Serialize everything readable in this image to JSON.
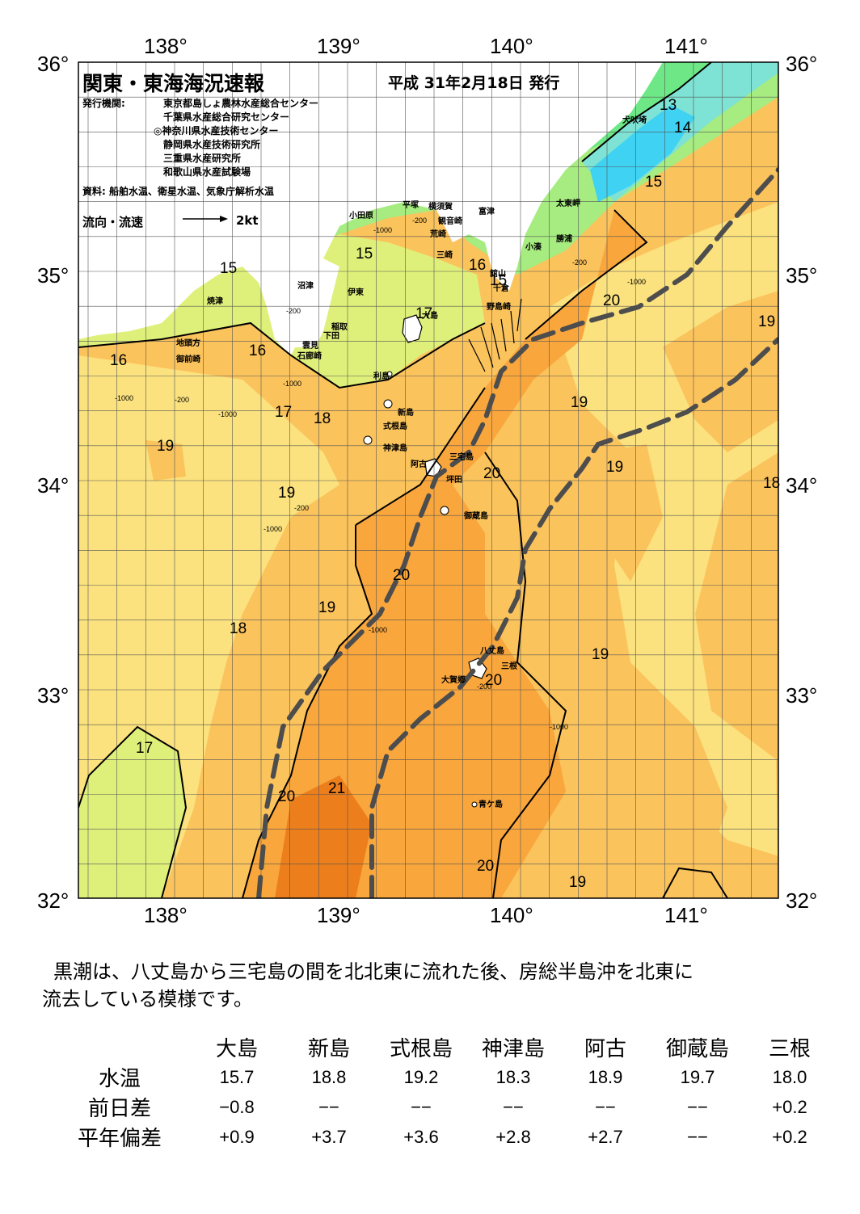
{
  "header": {
    "title": "関東・東海海況速報",
    "issued": "平成 31年2月18日 発行",
    "issuer_label": "発行機関:",
    "issuers": [
      "東京都島しょ農林水産総合センター",
      "千葉県水産総合研究センター",
      "◎神奈川県水産技術センター",
      "静岡県水産技術研究所",
      "三重県水産研究所",
      "和歌山県水産試験場"
    ],
    "source": "資料: 船舶水温、衛星水温、気象庁解析水温",
    "flow_label": "流向・流速",
    "flow_scale": "2kt"
  },
  "axes": {
    "lon_labels": [
      "138°",
      "139°",
      "140°",
      "141°"
    ],
    "lat_labels": [
      "36°",
      "35°",
      "34°",
      "33°",
      "32°"
    ]
  },
  "places": [
    {
      "name": "犬吠埼"
    },
    {
      "name": "太東岬"
    },
    {
      "name": "勝浦"
    },
    {
      "name": "小湊"
    },
    {
      "name": "富津"
    },
    {
      "name": "館山"
    },
    {
      "name": "千倉"
    },
    {
      "name": "野島崎"
    },
    {
      "name": "横須賀"
    },
    {
      "name": "観音崎"
    },
    {
      "name": "平塚"
    },
    {
      "name": "荒崎"
    },
    {
      "name": "三崎"
    },
    {
      "name": "小田原"
    },
    {
      "name": "沼津"
    },
    {
      "name": "伊東"
    },
    {
      "name": "焼津"
    },
    {
      "name": "稲取"
    },
    {
      "name": "下田"
    },
    {
      "name": "雲見"
    },
    {
      "name": "石廊崎"
    },
    {
      "name": "地頭方"
    },
    {
      "name": "御前崎"
    },
    {
      "name": "大島"
    },
    {
      "name": "利島"
    },
    {
      "name": "新島"
    },
    {
      "name": "式根島"
    },
    {
      "name": "神津島"
    },
    {
      "name": "三宅島"
    },
    {
      "name": "阿古"
    },
    {
      "name": "坪田"
    },
    {
      "name": "御蔵島"
    },
    {
      "name": "八丈島"
    },
    {
      "name": "三根"
    },
    {
      "name": "大賀郷"
    },
    {
      "name": "青ケ島"
    }
  ],
  "isotherm_labels": [
    "13",
    "14",
    "15",
    "15",
    "15",
    "16",
    "15",
    "17",
    "20",
    "19",
    "16",
    "16",
    "17",
    "18",
    "19",
    "19",
    "20",
    "19",
    "19",
    "18",
    "20",
    "19",
    "18",
    "19",
    "20",
    "17",
    "20",
    "21",
    "20",
    "19"
  ],
  "depth_labels": [
    "-200",
    "-1000",
    "-200",
    "-1000",
    "-200",
    "-1000",
    "-200",
    "-1000",
    "-1000",
    "-1000",
    "-1000",
    "-200",
    "-1000",
    "-200"
  ],
  "colors": {
    "t13": "#3fd2f2",
    "t14": "#7ee2d4",
    "t15": "#6ee886",
    "t16": "#a6ec80",
    "t17": "#dff07a",
    "t18": "#fbe27e",
    "t19": "#fbc35c",
    "t20": "#f9a63c",
    "t21": "#ed7e1c",
    "kuroshio": "#4d4d4d",
    "land": "#ffffff"
  },
  "comment": [
    "黒潮は、八丈島から三宅島の間を北北東に流れた後、房総半島沖を北東に",
    "流去している模様です。"
  ],
  "table": {
    "stations": [
      "大島",
      "新島",
      "式根島",
      "神津島",
      "阿古",
      "御蔵島",
      "三根"
    ],
    "rows": [
      {
        "label": "水温",
        "values": [
          "15.7",
          "18.8",
          "19.2",
          "18.3",
          "18.9",
          "19.7",
          "18.0"
        ]
      },
      {
        "label": "前日差",
        "values": [
          "−0.8",
          "−−",
          "−−",
          "−−",
          "−−",
          "−−",
          "+0.2"
        ]
      },
      {
        "label": "平年偏差",
        "values": [
          "+0.9",
          "+3.7",
          "+3.6",
          "+2.8",
          "+2.7",
          "−−",
          "+0.2"
        ]
      }
    ]
  }
}
